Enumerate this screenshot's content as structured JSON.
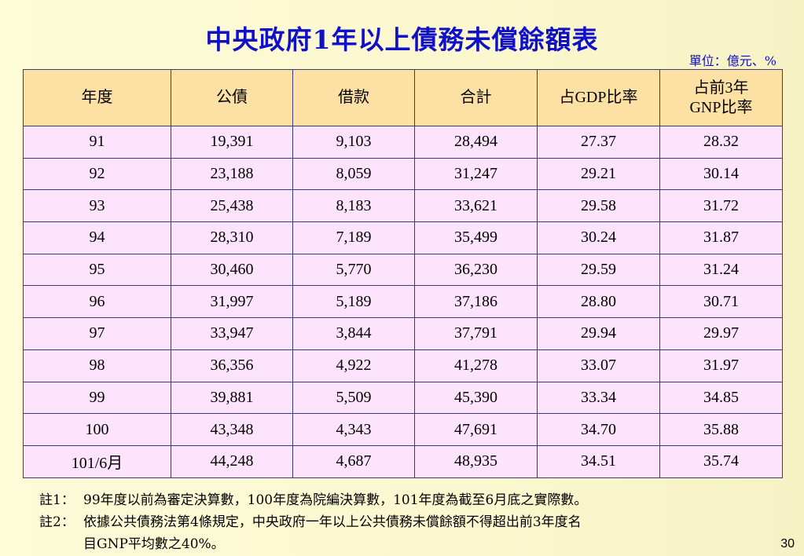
{
  "title": "中央政府1年以上債務未償餘額表",
  "unit": "單位：億元、%",
  "table": {
    "headers": [
      "年度",
      "公債",
      "借款",
      "合計",
      "占GDP比率",
      "占前3年",
      "GNP比率"
    ],
    "rows": [
      [
        "91",
        "19,391",
        "9,103",
        "28,494",
        "27.37",
        "28.32"
      ],
      [
        "92",
        "23,188",
        "8,059",
        "31,247",
        "29.21",
        "30.14"
      ],
      [
        "93",
        "25,438",
        "8,183",
        "33,621",
        "29.58",
        "31.72"
      ],
      [
        "94",
        "28,310",
        "7,189",
        "35,499",
        "30.24",
        "31.87"
      ],
      [
        "95",
        "30,460",
        "5,770",
        "36,230",
        "29.59",
        "31.24"
      ],
      [
        "96",
        "31,997",
        "5,189",
        "37,186",
        "28.80",
        "30.71"
      ],
      [
        "97",
        "33,947",
        "3,844",
        "37,791",
        "29.94",
        "29.97"
      ],
      [
        "98",
        "36,356",
        "4,922",
        "41,278",
        "33.07",
        "31.97"
      ],
      [
        "99",
        "39,881",
        "5,509",
        "45,390",
        "33.34",
        "34.85"
      ],
      [
        "100",
        "43,348",
        "4,343",
        "47,691",
        "34.70",
        "35.88"
      ],
      [
        "101/6月",
        "44,248",
        "4,687",
        "48,935",
        "34.51",
        "35.74"
      ]
    ]
  },
  "notes": {
    "note1_label": "註1：",
    "note1_text": "99年度以前為審定決算數，100年度為院編決算數，101年度為截至6月底之實際數。",
    "note2_label": "註2：",
    "note2_text_line1": "依據公共債務法第4條規定，中央政府一年以上公共債務未償餘額不得超出前3年度名",
    "note2_text_line2": "目GNP平均數之40%。"
  },
  "page_number": "30"
}
